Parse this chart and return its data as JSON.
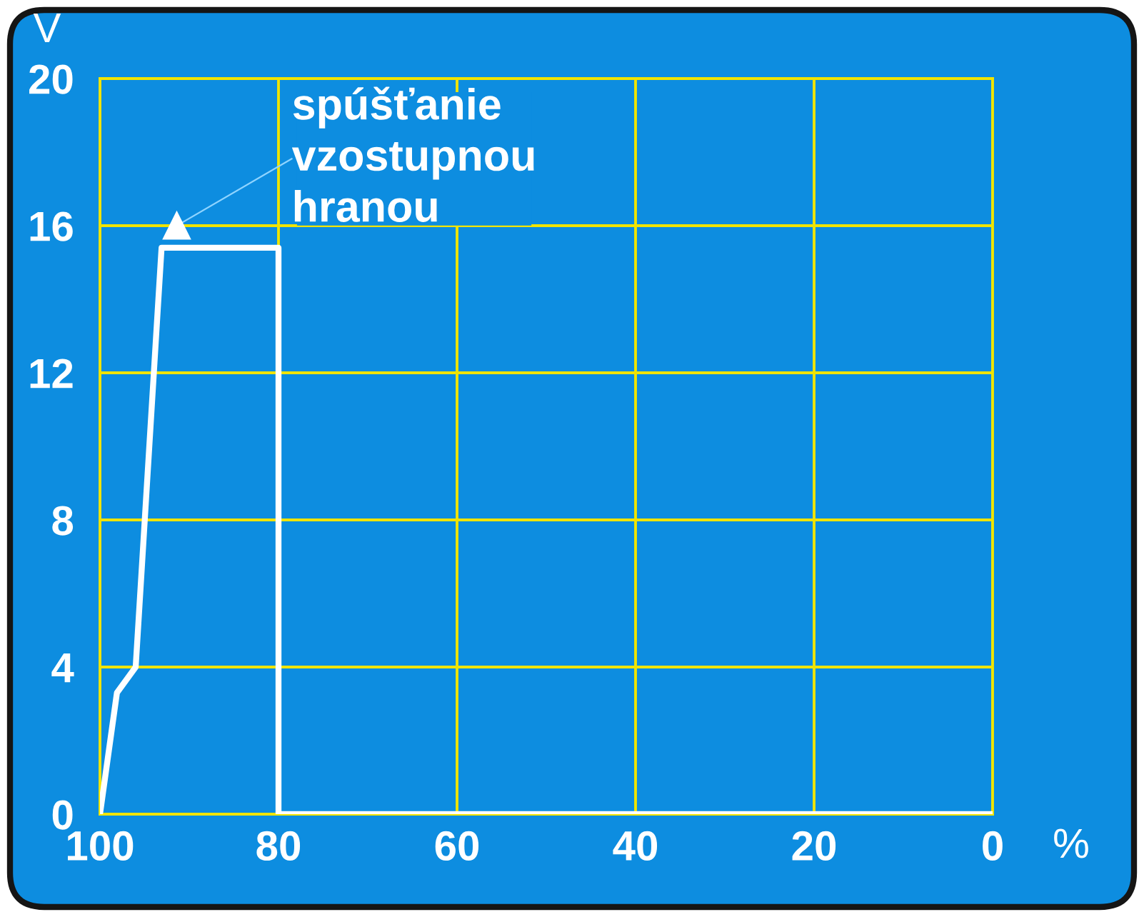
{
  "chart_data": {
    "type": "line",
    "xlabel": "%",
    "ylabel": "V",
    "x": [
      100,
      98.1,
      96,
      93.1,
      80,
      80,
      0
    ],
    "series": [
      {
        "color": "#ffffff",
        "values": [
          0,
          3.3,
          4,
          15.4,
          15.4,
          0,
          0
        ]
      }
    ],
    "xlim": [
      100,
      0
    ],
    "ylim": [
      0,
      20
    ],
    "xticks": [
      100,
      80,
      60,
      40,
      20,
      0
    ],
    "yticks": [
      0,
      4,
      8,
      12,
      16,
      20
    ],
    "grid": true,
    "annotations": [
      {
        "text": "spúšťanie\nvzostupnou\nhranou",
        "x": 91.4,
        "y": 16
      }
    ]
  }
}
